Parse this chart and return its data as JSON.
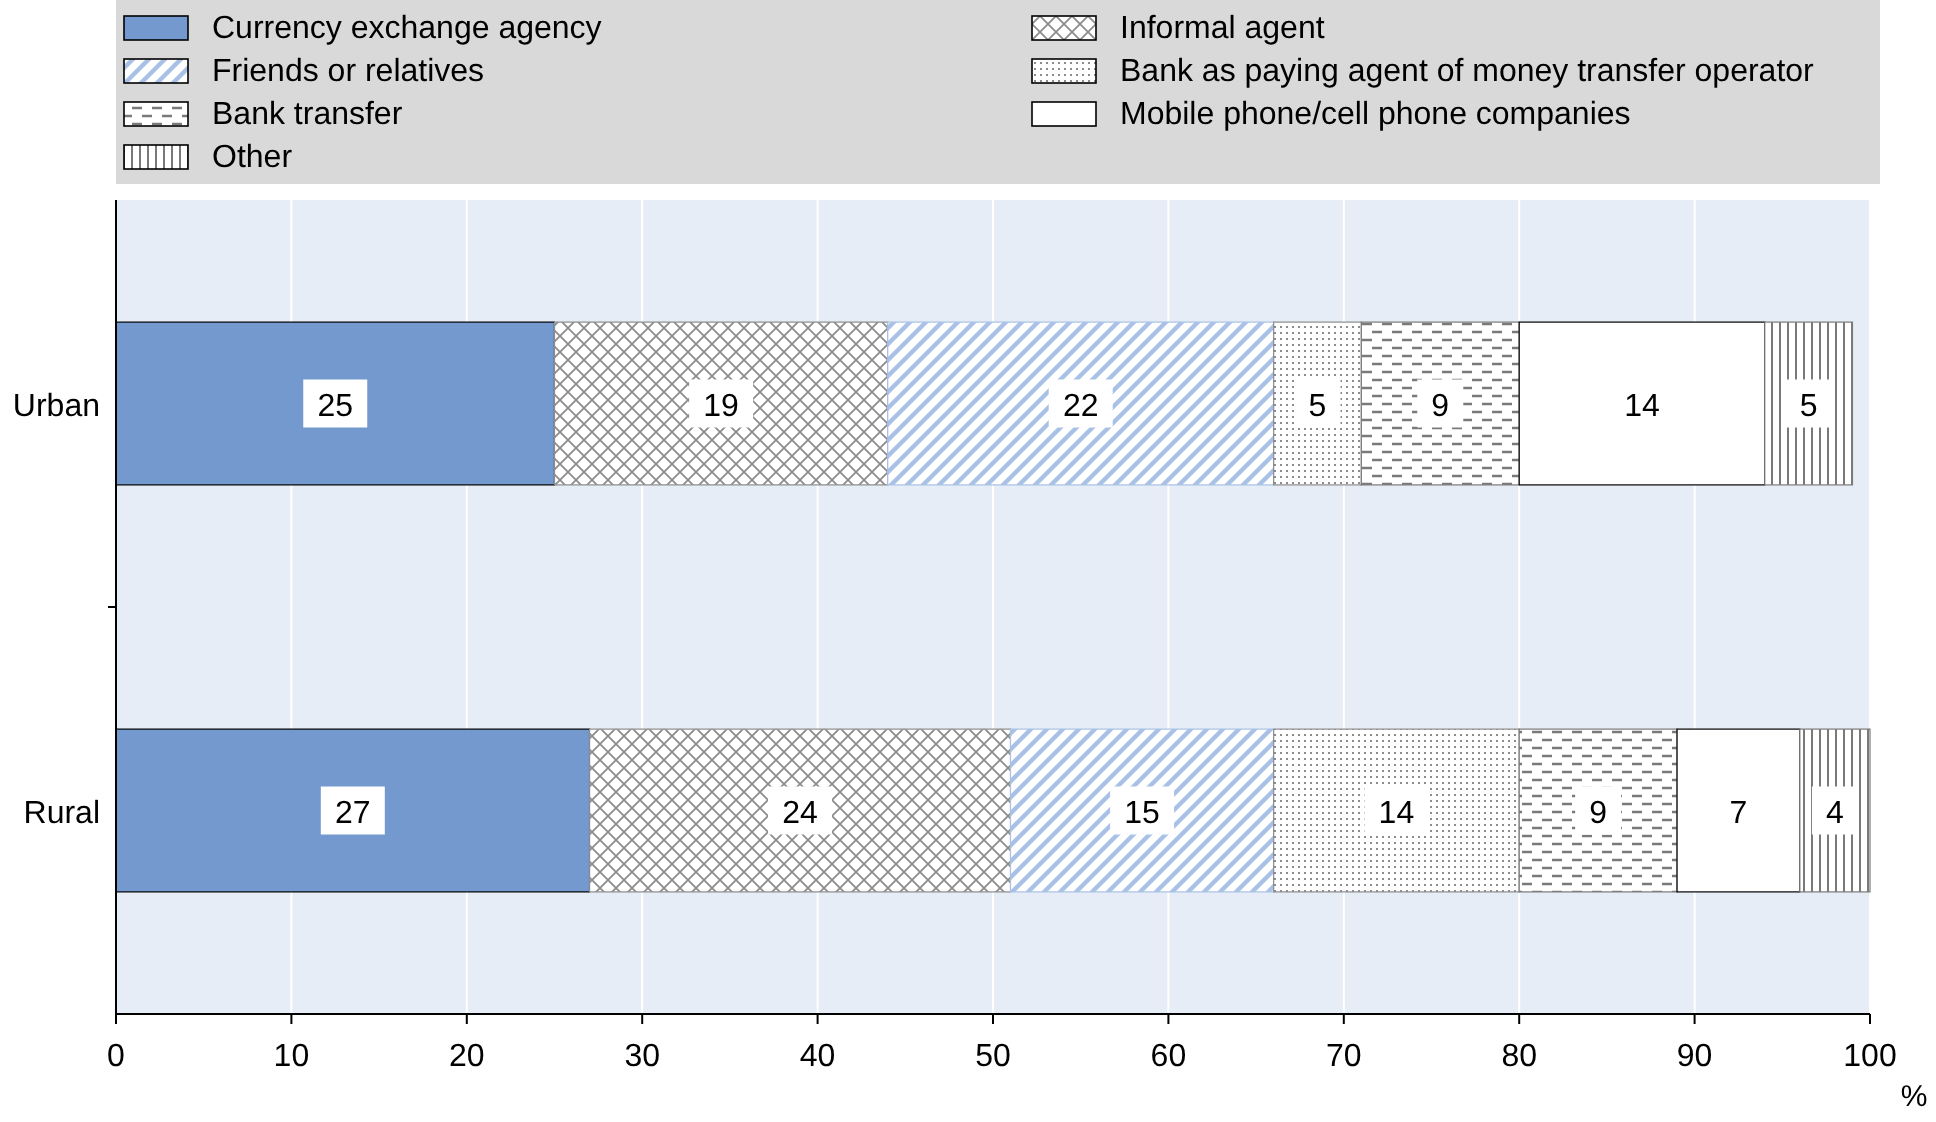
{
  "chart_data": {
    "type": "bar",
    "orientation": "horizontal",
    "stacked": true,
    "categories": [
      "Urban",
      "Rural"
    ],
    "series": [
      {
        "name": "Currency exchange agency",
        "color": "#7399cf",
        "values": [
          25,
          27
        ]
      },
      {
        "name": "Informal agent",
        "color": "#8c8c8c",
        "values": [
          19,
          24
        ]
      },
      {
        "name": "Friends or relatives",
        "color": "#a9c1e6",
        "values": [
          22,
          15
        ]
      },
      {
        "name": "Bank as paying agent of money transfer operator",
        "color": "#8c8c8c",
        "values": [
          5,
          14
        ]
      },
      {
        "name": "Bank transfer",
        "color": "#7a7a7a",
        "values": [
          9,
          9
        ]
      },
      {
        "name": "Mobile phone/cell phone companies",
        "color": "#ffffff",
        "values": [
          14,
          7
        ]
      },
      {
        "name": "Other",
        "color": "#7a7a7a",
        "values": [
          5,
          4
        ]
      }
    ],
    "xlim": [
      0,
      100
    ],
    "xticks": [
      0,
      10,
      20,
      30,
      40,
      50,
      60,
      70,
      80,
      90,
      100
    ],
    "xlabel": "%",
    "data_labels": true,
    "grid": "x",
    "legend": "top"
  }
}
